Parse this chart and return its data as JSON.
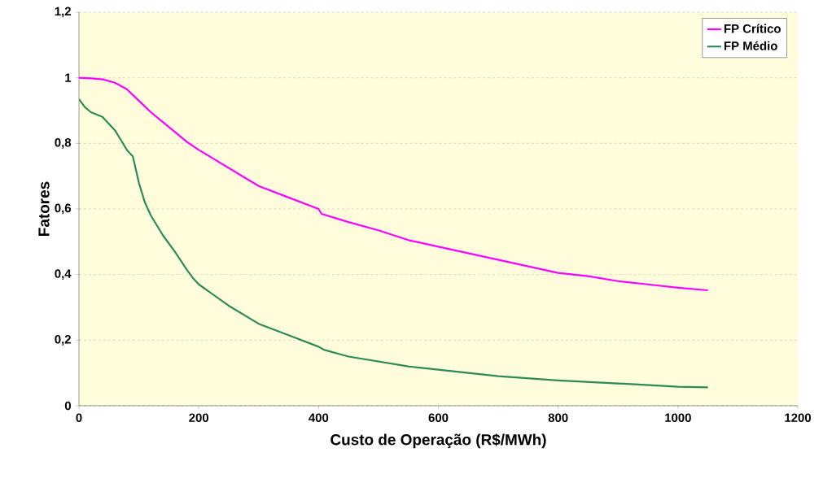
{
  "chart_data": {
    "type": "line",
    "xlabel": "Custo de Operação (R$/MWh)",
    "ylabel": "Fatores",
    "series": [
      {
        "name": "FP Crítico",
        "color": "#ff00ff",
        "x": [
          0,
          20,
          40,
          60,
          80,
          100,
          120,
          140,
          160,
          180,
          200,
          250,
          300,
          350,
          400,
          405,
          450,
          500,
          550,
          600,
          650,
          700,
          750,
          800,
          850,
          900,
          950,
          1000,
          1050
        ],
        "values": [
          1.0,
          0.998,
          0.995,
          0.985,
          0.965,
          0.93,
          0.895,
          0.865,
          0.835,
          0.805,
          0.78,
          0.725,
          0.67,
          0.635,
          0.6,
          0.585,
          0.56,
          0.535,
          0.505,
          0.485,
          0.465,
          0.445,
          0.425,
          0.405,
          0.395,
          0.38,
          0.37,
          0.36,
          0.352
        ]
      },
      {
        "name": "FP Médio",
        "color": "#2e8b57",
        "x": [
          0,
          10,
          20,
          40,
          42,
          60,
          70,
          80,
          90,
          100,
          110,
          120,
          140,
          160,
          180,
          190,
          200,
          250,
          300,
          350,
          400,
          410,
          450,
          500,
          550,
          600,
          650,
          700,
          800,
          900,
          1000,
          1050
        ],
        "values": [
          0.935,
          0.91,
          0.895,
          0.88,
          0.875,
          0.84,
          0.81,
          0.78,
          0.76,
          0.68,
          0.62,
          0.58,
          0.52,
          0.47,
          0.415,
          0.39,
          0.37,
          0.305,
          0.25,
          0.215,
          0.18,
          0.17,
          0.15,
          0.135,
          0.12,
          0.11,
          0.1,
          0.09,
          0.077,
          0.068,
          0.058,
          0.056
        ]
      }
    ],
    "xlim": [
      0,
      1200
    ],
    "xticks": [
      0,
      200,
      400,
      600,
      800,
      1000,
      1200
    ],
    "ylim": [
      0,
      1.2
    ],
    "yticks": [
      0,
      {
        "value": 0.2,
        "label": "0,2"
      },
      {
        "value": 0.4,
        "label": "0,4"
      },
      {
        "value": 0.6,
        "label": "0,6"
      },
      {
        "value": 0.8,
        "label": "0,8"
      },
      1,
      {
        "value": 1.2,
        "label": "1,2"
      }
    ],
    "grid": "y",
    "legend": "top right",
    "marker": "none",
    "line_style": "solid"
  }
}
